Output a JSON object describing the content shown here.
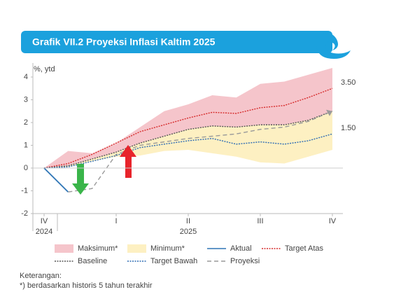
{
  "chart_data": {
    "type": "line",
    "title": "Grafik VII.2 Proyeksi Inflasi Kaltim 2025",
    "y_label": "%, ytd",
    "categories": [
      "IV",
      null,
      null,
      "I",
      null,
      null,
      "II",
      null,
      null,
      "III",
      null,
      null,
      "IV"
    ],
    "category_groups": [
      "2024",
      "2025"
    ],
    "ylim": [
      -2,
      4
    ],
    "yticks": [
      -2,
      -1,
      0,
      1,
      2,
      3,
      4
    ],
    "series": [
      {
        "name": "Maksimum*",
        "style": "area",
        "color": "#f5c5cb",
        "values": [
          0,
          0.75,
          0.65,
          1.1,
          1.8,
          2.5,
          2.8,
          3.2,
          3.1,
          3.7,
          3.8,
          4.1,
          4.4
        ]
      },
      {
        "name": "Minimum*",
        "style": "area",
        "color": "#fdf0c2",
        "values": [
          0,
          0.05,
          0.3,
          0.5,
          0.55,
          0.75,
          0.8,
          0.65,
          0.5,
          0.25,
          0.2,
          0.5,
          0.8
        ]
      },
      {
        "name": "Aktual",
        "style": "solid",
        "color": "#2e75b6",
        "values": [
          0,
          -1.05,
          null,
          null,
          null,
          null,
          null,
          null,
          null,
          null,
          null,
          null,
          null
        ]
      },
      {
        "name": "Target Atas",
        "style": "dotted",
        "color": "#d62b2b",
        "values": [
          0,
          0.2,
          0.6,
          1.1,
          1.6,
          1.9,
          2.2,
          2.45,
          2.4,
          2.65,
          2.75,
          3.1,
          3.5
        ],
        "value_labels": [
          null,
          null,
          null,
          null,
          null,
          null,
          null,
          null,
          null,
          null,
          null,
          null,
          "3.50"
        ]
      },
      {
        "name": "Baseline",
        "style": "dotted",
        "color": "#555555",
        "values": [
          0,
          0.1,
          0.4,
          0.7,
          1.1,
          1.4,
          1.7,
          1.85,
          1.8,
          1.9,
          1.9,
          2.1,
          2.5
        ]
      },
      {
        "name": "Target Bawah",
        "style": "dotted",
        "color": "#2e6db4",
        "values": [
          0,
          0.05,
          0.3,
          0.55,
          0.9,
          1.05,
          1.2,
          1.3,
          1.05,
          1.15,
          1.05,
          1.2,
          1.5
        ],
        "value_labels": [
          null,
          null,
          null,
          null,
          null,
          null,
          null,
          null,
          null,
          null,
          null,
          null,
          "1.50"
        ]
      },
      {
        "name": "Proyeksi",
        "style": "dashed",
        "color": "#9a9a9a",
        "values": [
          null,
          -1.05,
          -0.9,
          0.6,
          1.0,
          1.15,
          1.3,
          1.4,
          1.5,
          1.7,
          1.8,
          2.05,
          2.5
        ]
      }
    ],
    "notes": [
      "Keterangan:",
      "*) berdasarkan historis 5 tahun terakhir"
    ]
  }
}
